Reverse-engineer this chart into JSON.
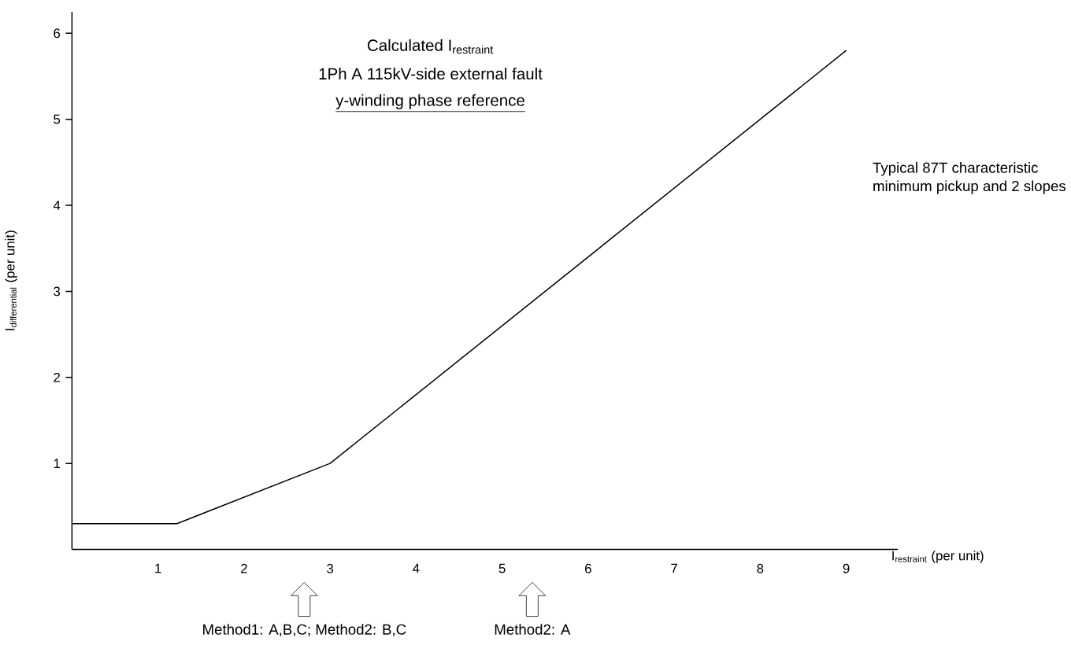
{
  "chart_data": {
    "type": "line",
    "title": "\\text{Calculated I}_{\\text{restraint}}",
    "subtitle": "1Ph A 115kV-side external fault",
    "xlabel": "\\text{I}_{\\text{restraint}}\\text{ (per unit)}",
    "ylabel": "\\text{I}_{\\text{differential}}\\text{ (per unit)}",
    "x": [
      0,
      1.22,
      3,
      9
    ],
    "values": [
      0.3,
      0.3,
      1,
      5.8
    ],
    "color": "#000000",
    "xlim": [
      0,
      9.6
    ],
    "ylim": [
      0,
      6.25
    ],
    "xticks": [
      1,
      2,
      3,
      4,
      5,
      6,
      7,
      8,
      9
    ],
    "yticks": [
      1,
      2,
      3,
      4,
      5,
      6
    ],
    "grid": false,
    "marker": "none",
    "line_style": "solid",
    "annotations": [
      "y-winding phase reference",
      "Typical 87T characteristic",
      "minimum pickup and 2 slopes",
      "Method1: A,B,C; Method2: B,C",
      "Method2: A"
    ]
  }
}
